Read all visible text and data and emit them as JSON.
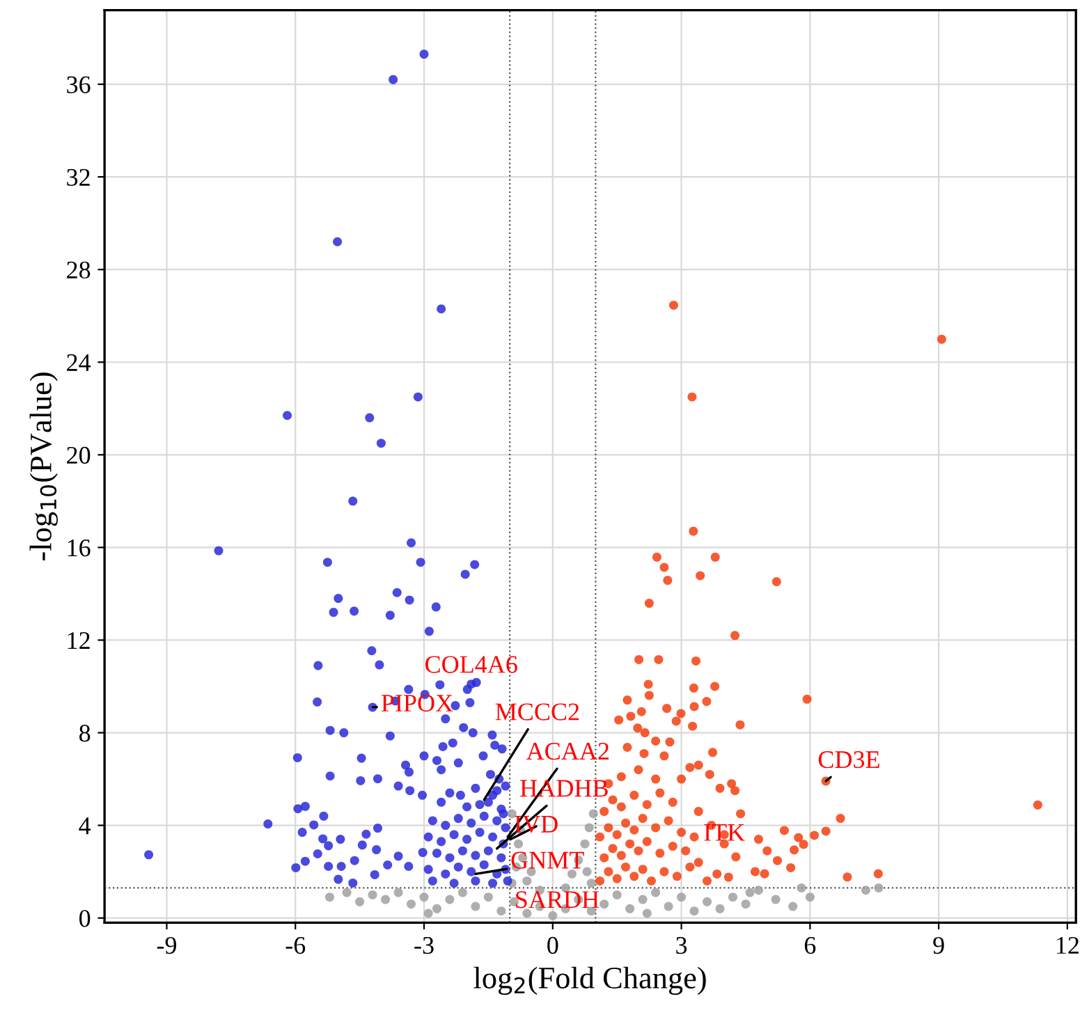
{
  "chart_data": {
    "type": "scatter",
    "xlabel": "log$_{2}$(Fold Change)",
    "ylabel": "-log$_{10}$(PValue)",
    "xlim": [
      -10.45,
      12.2
    ],
    "ylim": [
      -0.2,
      39.2
    ],
    "xticks": [
      -9,
      -6,
      -3,
      0,
      3,
      6,
      9,
      12
    ],
    "yticks": [
      0,
      4,
      8,
      12,
      16,
      20,
      24,
      28,
      32,
      36
    ],
    "grid": true,
    "marker": "circle",
    "ref_lines": [
      {
        "axis": "x",
        "value": -1,
        "color": "#555555",
        "line_style": "dotted"
      },
      {
        "axis": "x",
        "value": 1,
        "color": "#555555",
        "line_style": "dotted"
      },
      {
        "axis": "y",
        "value": 1.3,
        "color": "#555555",
        "line_style": "dotted"
      }
    ],
    "series": [
      {
        "color": "#a0a0a0",
        "x": [
          -5.2,
          -4.8,
          -4.5,
          -4.2,
          -3.9,
          -3.6,
          -3.3,
          -3.0,
          -2.7,
          -2.4,
          -2.1,
          -1.8,
          -1.5,
          -1.2,
          -0.9,
          -0.6,
          -0.3,
          0,
          0.3,
          0.6,
          0.9,
          1.2,
          1.5,
          1.8,
          2.1,
          2.4,
          2.7,
          3.0,
          3.3,
          3.6,
          3.9,
          4.2,
          4.5,
          4.8,
          5.2,
          5.6,
          6.0,
          -2.9,
          2.2,
          -0.95,
          -0.75,
          -0.8,
          -0.7,
          -0.5,
          -0.85,
          -0.6,
          -0.3,
          0.95,
          0.85,
          0.75,
          0.6,
          0.45,
          0.8,
          0.3,
          0.9,
          -0.95,
          7.3,
          7.6,
          5.8,
          4.6
        ],
        "values": [
          0.9,
          1.1,
          0.7,
          1.0,
          0.8,
          1.1,
          0.6,
          0.9,
          0.4,
          0.8,
          1.1,
          0.5,
          0.9,
          0.3,
          0.7,
          0.2,
          0.5,
          0.1,
          0.4,
          0.8,
          0.3,
          0.6,
          1.0,
          0.4,
          0.8,
          1.1,
          0.5,
          0.9,
          0.3,
          0.7,
          0.4,
          0.9,
          0.6,
          1.2,
          0.8,
          0.5,
          0.9,
          0.2,
          0.2,
          4.5,
          3.8,
          3.2,
          2.6,
          2.0,
          2.2,
          1.6,
          1.2,
          4.5,
          3.9,
          3.2,
          2.5,
          1.9,
          2.0,
          1.3,
          1.5,
          1.5,
          1.2,
          1.3,
          1.3,
          1.1
        ]
      },
      {
        "color": "#2a2ad8",
        "x": [
          -3.0,
          -3.72,
          -5.02,
          -2.6,
          -3.14,
          -6.19,
          -4.27,
          -4.0,
          -4.66,
          -7.79,
          -3.3,
          -5.25,
          -3.08,
          -1.82,
          -2.04,
          -3.63,
          -5.0,
          -3.34,
          -5.11,
          -4.63,
          -3.79,
          -2.72,
          -2.88,
          -4.22,
          -4.04,
          -5.47,
          -5.49,
          -5.19,
          -4.87,
          -5.95,
          -5.19,
          -4.48,
          -4.08,
          -4.46,
          -3.79,
          -6.64,
          -5.94,
          -5.77,
          -9.42,
          -5.57,
          -5.34,
          -5.84,
          -5.99,
          -5.77,
          -5.48,
          -5.36,
          -5.23,
          -4.95,
          -4.35,
          -4.08,
          -4.44,
          -4.11,
          -5.0,
          -4.66,
          -4.62,
          -4.93,
          -5.23,
          -3.85,
          -3.6,
          -4.15,
          -3.36,
          -3.03,
          -3.36,
          -2.98,
          -2.63,
          -1.99,
          -1.78,
          -2.27,
          -1.93,
          -3.67,
          -2.5,
          -2.08,
          -1.86,
          -1.41,
          -1.35,
          -1.18,
          -2.33,
          -2.56,
          -1.62,
          -2.7,
          -3.0,
          -2.2,
          -2.6,
          -3.43,
          -3.35,
          -3.6,
          -3.33,
          -3.04,
          -2.6,
          -2.15,
          -1.7,
          -1.4,
          -1.1,
          -1.15,
          -2.8,
          -2.5,
          -2.2,
          -1.9,
          -1.6,
          -1.3,
          -1.1,
          -2.9,
          -2.6,
          -2.3,
          -2.0,
          -1.7,
          -1.4,
          -1.15,
          -2.7,
          -2.4,
          -2.1,
          -1.8,
          -1.5,
          -1.2,
          -2.9,
          -2.5,
          -2.2,
          -1.9,
          -1.6,
          -1.3,
          -1.1,
          -2.8,
          -2.3,
          -1.8,
          -1.4,
          -1.05,
          -2.0,
          -1.5,
          -2.4,
          -1.2,
          -1.8,
          -1.45,
          -1.25,
          -1.3,
          -1.9,
          -4.2
        ],
        "values": [
          37.3,
          36.2,
          29.2,
          26.3,
          22.5,
          21.7,
          21.6,
          20.5,
          18.0,
          15.86,
          16.2,
          15.36,
          15.36,
          15.26,
          14.84,
          14.05,
          13.8,
          13.73,
          13.2,
          13.25,
          13.07,
          13.43,
          12.38,
          11.54,
          10.93,
          10.9,
          9.33,
          8.1,
          8.0,
          6.92,
          6.13,
          5.93,
          6.01,
          6.9,
          7.86,
          4.06,
          4.72,
          4.82,
          2.73,
          4.02,
          4.4,
          3.7,
          2.17,
          2.45,
          2.77,
          3.42,
          3.12,
          3.4,
          3.62,
          3.88,
          3.15,
          2.95,
          1.67,
          1.51,
          2.48,
          2.23,
          2.23,
          2.29,
          2.67,
          1.87,
          2.23,
          2.83,
          9.87,
          9.65,
          10.07,
          9.87,
          10.17,
          9.17,
          9.3,
          9.37,
          8.6,
          8.22,
          8.0,
          7.9,
          7.46,
          7.3,
          7.56,
          7.4,
          7.0,
          6.8,
          7.0,
          6.7,
          6.4,
          6.6,
          6.3,
          5.7,
          5.5,
          5.3,
          5.0,
          5.3,
          4.9,
          5.3,
          5.7,
          4.5,
          4.2,
          4.0,
          4.3,
          4.1,
          4.4,
          4.2,
          3.9,
          3.5,
          3.3,
          3.6,
          3.4,
          3.7,
          3.5,
          3.2,
          2.8,
          2.6,
          2.9,
          2.7,
          2.9,
          2.6,
          2.1,
          1.9,
          2.2,
          2.0,
          2.3,
          1.9,
          2.1,
          1.6,
          1.5,
          1.6,
          1.5,
          1.6,
          4.8,
          5.0,
          5.4,
          4.7,
          5.6,
          6.2,
          6.0,
          5.5,
          10.1,
          9.1
        ]
      },
      {
        "color": "#f5400f",
        "x": [
          2.82,
          9.07,
          3.25,
          3.28,
          2.43,
          3.79,
          2.6,
          2.68,
          3.44,
          5.22,
          2.25,
          4.25,
          2.01,
          2.47,
          3.34,
          2.23,
          3.29,
          3.78,
          2.25,
          5.93,
          1.74,
          2.07,
          2.66,
          3.3,
          3.59,
          1.82,
          1.54,
          2.99,
          2.88,
          3.26,
          4.37,
          1.98,
          2.15,
          2.4,
          2.73,
          1.74,
          2.13,
          2.6,
          3.73,
          3.2,
          3.4,
          3.66,
          3.0,
          3.9,
          4.17,
          4.25,
          4.38,
          5.4,
          5.73,
          6.1,
          6.37,
          6.71,
          6.37,
          11.31,
          6.87,
          7.59,
          5.85,
          5.63,
          5.55,
          4.94,
          4.72,
          5.24,
          5.0,
          4.8,
          4.27,
          4.1,
          3.83,
          3.6,
          3.4,
          1.1,
          1.3,
          1.5,
          1.7,
          1.9,
          2.1,
          2.3,
          2.6,
          2.9,
          3.2,
          1.2,
          1.4,
          1.6,
          1.8,
          2.0,
          2.2,
          2.5,
          2.8,
          3.1,
          1.1,
          1.3,
          1.5,
          1.7,
          1.9,
          2.1,
          2.4,
          2.7,
          3.0,
          3.3,
          1.2,
          1.4,
          1.6,
          1.9,
          2.2,
          2.5,
          2.8,
          3.4,
          3.7,
          4.0,
          1.3,
          1.6,
          2.0,
          2.4,
          4.0
        ],
        "values": [
          26.46,
          24.99,
          22.5,
          16.7,
          15.58,
          15.58,
          15.14,
          14.58,
          14.78,
          14.52,
          13.59,
          12.2,
          11.16,
          11.16,
          11.1,
          10.09,
          9.93,
          10.0,
          9.61,
          9.45,
          9.41,
          8.91,
          9.05,
          9.13,
          9.35,
          8.71,
          8.55,
          8.83,
          8.5,
          8.28,
          8.34,
          8.2,
          8.0,
          7.64,
          7.6,
          7.37,
          7.1,
          7.0,
          7.15,
          6.5,
          6.6,
          6.2,
          6.0,
          5.6,
          5.8,
          5.5,
          4.5,
          3.78,
          3.47,
          3.57,
          3.75,
          4.3,
          5.91,
          4.88,
          1.77,
          1.91,
          3.18,
          2.94,
          2.17,
          1.91,
          2.0,
          2.48,
          2.9,
          3.4,
          2.64,
          1.76,
          1.9,
          1.6,
          2.4,
          1.6,
          2.0,
          1.7,
          2.2,
          1.8,
          2.1,
          1.6,
          2.0,
          1.8,
          2.2,
          2.6,
          3.0,
          2.7,
          3.2,
          2.9,
          3.3,
          2.8,
          3.1,
          2.9,
          3.5,
          3.9,
          3.6,
          4.1,
          3.8,
          4.3,
          3.9,
          4.2,
          3.7,
          3.5,
          4.6,
          5.1,
          4.8,
          5.3,
          4.9,
          5.4,
          5.0,
          4.6,
          4.0,
          3.2,
          5.8,
          6.1,
          6.4,
          6.0,
          3.6
        ]
      }
    ],
    "annotations": [
      {
        "text": "COL4A6",
        "x": -1.9,
        "y": 10.1
      },
      {
        "text": "PIPOX",
        "x": -4.2,
        "y": 9.1
      },
      {
        "text": "MCCC2",
        "x": -1.6,
        "y": 5.1
      },
      {
        "text": "ACAA2",
        "x": -1.05,
        "y": 3.5
      },
      {
        "text": "HADHB",
        "x": -1.3,
        "y": 3.0
      },
      {
        "text": "IVD",
        "x": -0.98,
        "y": 3.4
      },
      {
        "text": "GNMT",
        "x": -1.8,
        "y": 1.9
      },
      {
        "text": "SARDH",
        "x": 0.1,
        "y": 0.7
      },
      {
        "text": "ITK",
        "x": 4.0,
        "y": 3.6
      },
      {
        "text": "CD3E",
        "x": 6.37,
        "y": 5.91
      }
    ]
  }
}
